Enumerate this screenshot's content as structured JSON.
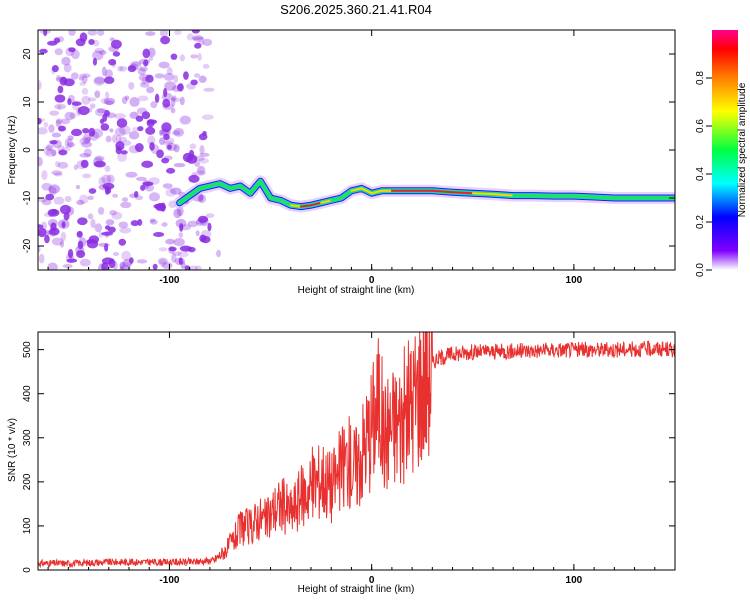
{
  "title": "S206.2025.360.21.41.R04",
  "colors": {
    "snr_line": "#e8312f",
    "spectrum_track_core": "#e8202a",
    "spectrum_track_mid": "#22e05a",
    "spectrum_track_edge": "#2a1be0",
    "noise": "#8a2be2"
  },
  "chart_data": [
    {
      "type": "heatmap",
      "name": "spectrogram",
      "xlabel": "Height of straight line (km)",
      "ylabel": "Frequency (Hz)",
      "xlim": [
        -165,
        150
      ],
      "ylim": [
        -25,
        25
      ],
      "xticks": [
        -100,
        0,
        100
      ],
      "yticks": [
        -20,
        -10,
        0,
        10,
        20
      ],
      "xtick_labels": [
        "-100",
        "0",
        "100"
      ],
      "ytick_labels": [
        "-20",
        "-10",
        "0",
        "10",
        "20"
      ],
      "grid": false,
      "noise_region_x": [
        -165,
        -80
      ],
      "track": {
        "x": [
          -95,
          -90,
          -85,
          -80,
          -75,
          -70,
          -65,
          -60,
          -55,
          -50,
          -45,
          -40,
          -35,
          -30,
          -25,
          -20,
          -15,
          -10,
          -5,
          0,
          5,
          10,
          20,
          30,
          40,
          50,
          60,
          70,
          80,
          90,
          100,
          110,
          120,
          130,
          140,
          150
        ],
        "y": [
          -11,
          -9.5,
          -8,
          -7.5,
          -7,
          -8,
          -7.5,
          -9,
          -6.5,
          -10,
          -10.5,
          -11.5,
          -11.8,
          -11.5,
          -11,
          -10.5,
          -10,
          -8.5,
          -8,
          -9,
          -8.5,
          -8.5,
          -8.5,
          -8.5,
          -8.8,
          -9,
          -9.2,
          -9.5,
          -9.5,
          -9.6,
          -9.6,
          -9.8,
          -10,
          -10,
          -10,
          -10
        ],
        "amplitude": [
          0.3,
          0.35,
          0.4,
          0.45,
          0.45,
          0.5,
          0.5,
          0.55,
          0.5,
          0.6,
          0.65,
          0.75,
          0.85,
          0.85,
          0.75,
          0.7,
          0.7,
          0.8,
          0.8,
          0.75,
          0.8,
          0.85,
          0.9,
          0.9,
          0.85,
          0.8,
          0.75,
          0.7,
          0.7,
          0.65,
          0.6,
          0.6,
          0.55,
          0.5,
          0.45,
          0.4
        ]
      },
      "colorbar": {
        "label": "Normalized spectral amplitude",
        "range": [
          0,
          1
        ],
        "ticks": [
          0.0,
          0.2,
          0.4,
          0.6,
          0.8
        ],
        "tick_labels": [
          "0.0",
          "0.2",
          "0.4",
          "0.6",
          "0.8"
        ],
        "colormap": [
          "#ffffff",
          "#8000ff",
          "#0000ff",
          "#00ffff",
          "#00ff40",
          "#ffff00",
          "#ff8000",
          "#ff0000",
          "#ff0090"
        ]
      }
    },
    {
      "type": "line",
      "name": "snr",
      "xlabel": "Height of straight line (km)",
      "ylabel": "SNR (10 * v/v)",
      "xlim": [
        -165,
        150
      ],
      "ylim": [
        0,
        540
      ],
      "xticks": [
        -100,
        0,
        100
      ],
      "yticks": [
        0,
        100,
        200,
        300,
        400,
        500
      ],
      "xtick_labels": [
        "-100",
        "0",
        "100"
      ],
      "ytick_labels": [
        "0",
        "100",
        "200",
        "300",
        "400",
        "500"
      ],
      "grid": false,
      "series": [
        {
          "name": "SNR",
          "x": [
            -165,
            -150,
            -130,
            -110,
            -90,
            -78,
            -72,
            -68,
            -64,
            -60,
            -56,
            -52,
            -48,
            -44,
            -40,
            -36,
            -32,
            -28,
            -24,
            -20,
            -16,
            -12,
            -8,
            -4,
            0,
            2,
            4,
            6,
            8,
            10,
            12,
            16,
            20,
            24,
            28,
            32,
            40,
            50,
            60,
            80,
            100,
            120,
            140,
            150
          ],
          "y": [
            15,
            15,
            18,
            18,
            18,
            22,
            45,
            70,
            100,
            95,
            120,
            110,
            140,
            150,
            130,
            160,
            180,
            200,
            210,
            190,
            220,
            250,
            230,
            280,
            330,
            360,
            390,
            300,
            320,
            330,
            330,
            350,
            380,
            420,
            450,
            480,
            490,
            495,
            495,
            498,
            500,
            500,
            502,
            500
          ]
        }
      ]
    }
  ]
}
